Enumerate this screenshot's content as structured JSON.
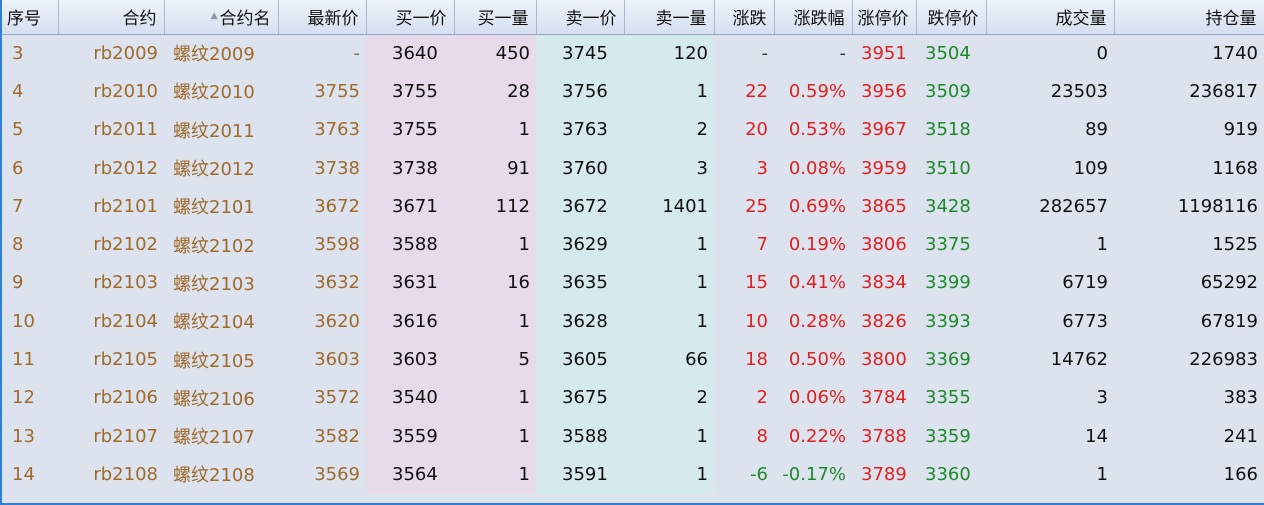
{
  "table": {
    "headers": {
      "seq": "序号",
      "code": "合约",
      "name": "合约名",
      "last": "最新价",
      "bid": "买一价",
      "bid_vol": "买一量",
      "ask": "卖一价",
      "ask_vol": "卖一量",
      "change": "涨跌",
      "change_pct": "涨跌幅",
      "limit_up": "涨停价",
      "limit_down": "跌停价",
      "volume": "成交量",
      "open_interest": "持仓量"
    },
    "sort_icon": "sort-ascending-icon",
    "rows": [
      {
        "seq": "3",
        "code": "rb2009",
        "name": "螺纹2009",
        "last": "-",
        "bid": "3640",
        "bid_vol": "450",
        "ask": "3745",
        "ask_vol": "120",
        "change": "-",
        "change_pct": "-",
        "limit_up": "3951",
        "limit_down": "3504",
        "volume": "0",
        "open_interest": "1740"
      },
      {
        "seq": "4",
        "code": "rb2010",
        "name": "螺纹2010",
        "last": "3755",
        "bid": "3755",
        "bid_vol": "28",
        "ask": "3756",
        "ask_vol": "1",
        "change": "22",
        "change_pct": "0.59%",
        "limit_up": "3956",
        "limit_down": "3509",
        "volume": "23503",
        "open_interest": "236817"
      },
      {
        "seq": "5",
        "code": "rb2011",
        "name": "螺纹2011",
        "last": "3763",
        "bid": "3755",
        "bid_vol": "1",
        "ask": "3763",
        "ask_vol": "2",
        "change": "20",
        "change_pct": "0.53%",
        "limit_up": "3967",
        "limit_down": "3518",
        "volume": "89",
        "open_interest": "919"
      },
      {
        "seq": "6",
        "code": "rb2012",
        "name": "螺纹2012",
        "last": "3738",
        "bid": "3738",
        "bid_vol": "91",
        "ask": "3760",
        "ask_vol": "3",
        "change": "3",
        "change_pct": "0.08%",
        "limit_up": "3959",
        "limit_down": "3510",
        "volume": "109",
        "open_interest": "1168"
      },
      {
        "seq": "7",
        "code": "rb2101",
        "name": "螺纹2101",
        "last": "3672",
        "bid": "3671",
        "bid_vol": "112",
        "ask": "3672",
        "ask_vol": "1401",
        "change": "25",
        "change_pct": "0.69%",
        "limit_up": "3865",
        "limit_down": "3428",
        "volume": "282657",
        "open_interest": "1198116"
      },
      {
        "seq": "8",
        "code": "rb2102",
        "name": "螺纹2102",
        "last": "3598",
        "bid": "3588",
        "bid_vol": "1",
        "ask": "3629",
        "ask_vol": "1",
        "change": "7",
        "change_pct": "0.19%",
        "limit_up": "3806",
        "limit_down": "3375",
        "volume": "1",
        "open_interest": "1525"
      },
      {
        "seq": "9",
        "code": "rb2103",
        "name": "螺纹2103",
        "last": "3632",
        "bid": "3631",
        "bid_vol": "16",
        "ask": "3635",
        "ask_vol": "1",
        "change": "15",
        "change_pct": "0.41%",
        "limit_up": "3834",
        "limit_down": "3399",
        "volume": "6719",
        "open_interest": "65292"
      },
      {
        "seq": "10",
        "code": "rb2104",
        "name": "螺纹2104",
        "last": "3620",
        "bid": "3616",
        "bid_vol": "1",
        "ask": "3628",
        "ask_vol": "1",
        "change": "10",
        "change_pct": "0.28%",
        "limit_up": "3826",
        "limit_down": "3393",
        "volume": "6773",
        "open_interest": "67819"
      },
      {
        "seq": "11",
        "code": "rb2105",
        "name": "螺纹2105",
        "last": "3603",
        "bid": "3603",
        "bid_vol": "5",
        "ask": "3605",
        "ask_vol": "66",
        "change": "18",
        "change_pct": "0.50%",
        "limit_up": "3800",
        "limit_down": "3369",
        "volume": "14762",
        "open_interest": "226983"
      },
      {
        "seq": "12",
        "code": "rb2106",
        "name": "螺纹2106",
        "last": "3572",
        "bid": "3540",
        "bid_vol": "1",
        "ask": "3675",
        "ask_vol": "2",
        "change": "2",
        "change_pct": "0.06%",
        "limit_up": "3784",
        "limit_down": "3355",
        "volume": "3",
        "open_interest": "383"
      },
      {
        "seq": "13",
        "code": "rb2107",
        "name": "螺纹2107",
        "last": "3582",
        "bid": "3559",
        "bid_vol": "1",
        "ask": "3588",
        "ask_vol": "1",
        "change": "8",
        "change_pct": "0.22%",
        "limit_up": "3788",
        "limit_down": "3359",
        "volume": "14",
        "open_interest": "241"
      },
      {
        "seq": "14",
        "code": "rb2108",
        "name": "螺纹2108",
        "last": "3569",
        "bid": "3564",
        "bid_vol": "1",
        "ask": "3591",
        "ask_vol": "1",
        "change": "-6",
        "change_pct": "-0.17%",
        "limit_up": "3789",
        "limit_down": "3360",
        "volume": "1",
        "open_interest": "166"
      }
    ]
  },
  "colors": {
    "background": "#dce3ee",
    "border_accent": "#2f7fd6",
    "bid_column_bg": "#e7dbeb",
    "ask_column_bg": "#d6e9ec",
    "contract_text": "#a06a2a",
    "up_red": "#e0201e",
    "down_green": "#1d8a2a"
  }
}
